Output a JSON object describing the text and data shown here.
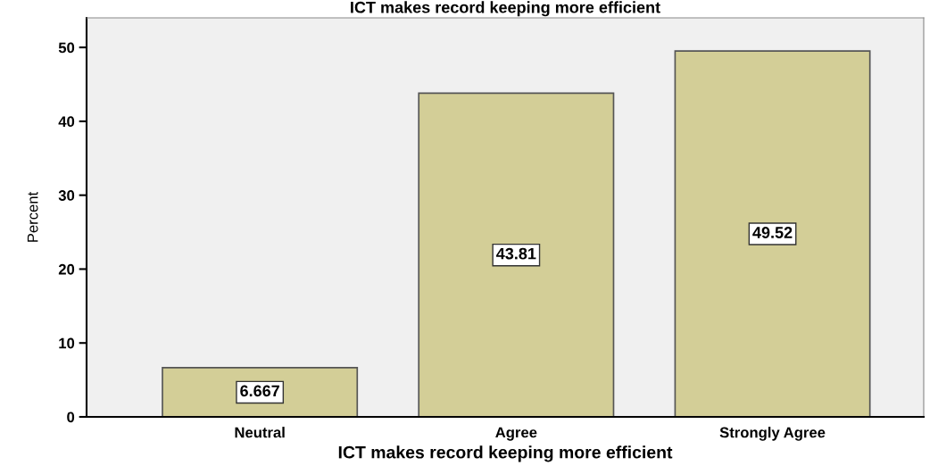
{
  "chart_data": {
    "type": "bar",
    "title": "ICT makes record keeping more efficient",
    "xlabel": "ICT makes record keeping more efficient",
    "ylabel": "Percent",
    "categories": [
      "Neutral",
      "Agree",
      "Strongly Agree"
    ],
    "values": [
      6.667,
      43.81,
      49.52
    ],
    "color": "#d3ce97",
    "ylim": [
      0,
      54
    ],
    "yticks": [
      0,
      10,
      20,
      30,
      40,
      50
    ],
    "grid": false,
    "data_labels": true
  }
}
